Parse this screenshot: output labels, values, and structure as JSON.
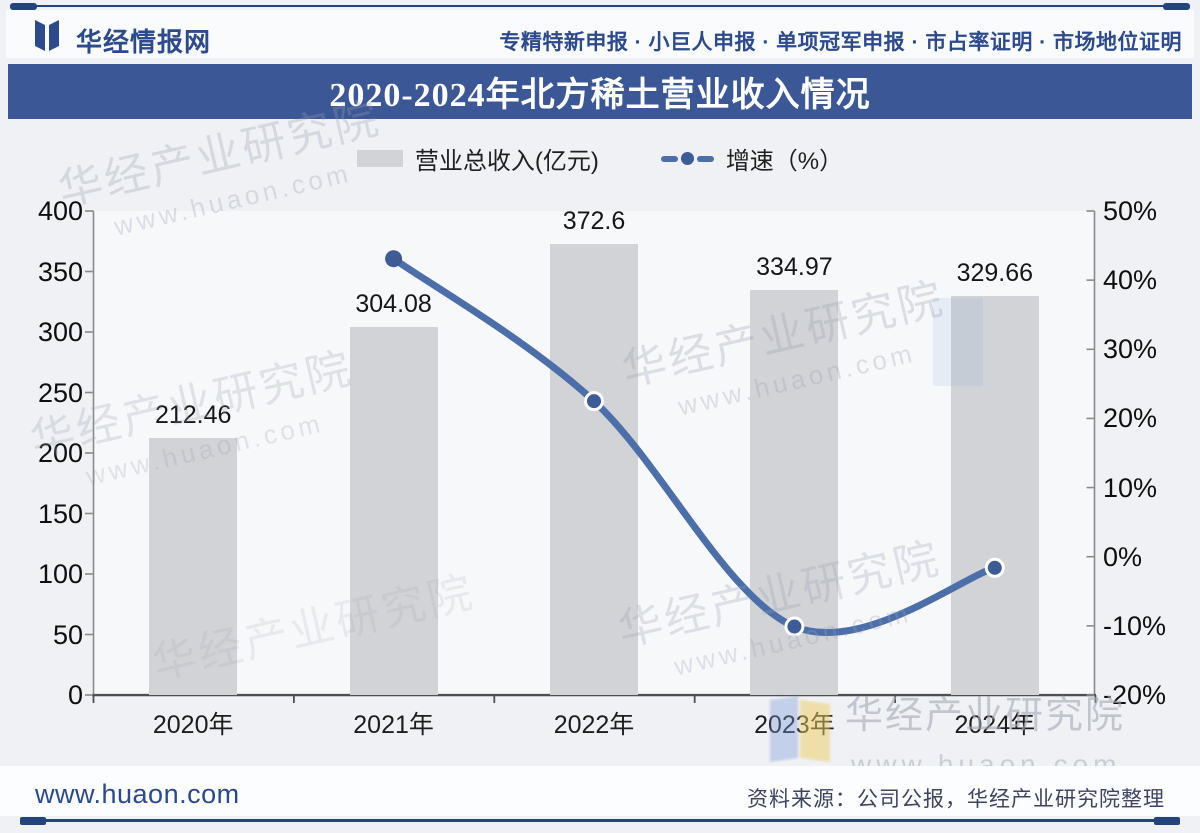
{
  "header": {
    "brand": "华经情报网",
    "services": "专精特新申报 · 小巨人申报 · 单项冠军申报 · 市占率证明 · 市场地位证明"
  },
  "title": "2020-2024年北方稀土营业收入情况",
  "legend": {
    "bar_label": "营业总收入(亿元)",
    "line_label": "增速（%）"
  },
  "chart_data": {
    "type": "bar+line",
    "categories": [
      "2020年",
      "2021年",
      "2022年",
      "2023年",
      "2024年"
    ],
    "series": [
      {
        "name": "营业总收入(亿元)",
        "type": "bar",
        "axis": "left",
        "color": "#d2d3d6",
        "values": [
          212.46,
          304.08,
          372.6,
          334.97,
          329.66
        ],
        "labels": [
          "212.46",
          "304.08",
          "372.6",
          "334.97",
          "329.66"
        ]
      },
      {
        "name": "增速（%）",
        "type": "line",
        "axis": "right",
        "color": "#4d6fa9",
        "marker_color": "#3d5c97",
        "values": [
          null,
          43.1,
          22.5,
          -10.1,
          -1.6
        ]
      }
    ],
    "left_axis": {
      "min": 0,
      "max": 400,
      "step": 50,
      "tick_labels": [
        "400",
        "350",
        "300",
        "250",
        "200",
        "150",
        "100",
        "50",
        "0"
      ]
    },
    "right_axis": {
      "min": -20,
      "max": 50,
      "step": 10,
      "tick_labels": [
        "50%",
        "40%",
        "30%",
        "20%",
        "10%",
        "0%",
        "-10%",
        "-20%"
      ]
    },
    "grid": false,
    "legend_position": "top"
  },
  "watermark": {
    "main": "华经产业研究院",
    "url": "www.huaon.com"
  },
  "footer": {
    "site": "www.huaon.com",
    "source": "资料来源：公司公报，华经产业研究院整理"
  },
  "colors": {
    "accent_navy": "#2c4a8c",
    "title_bar_bg": "#3b5796",
    "bar_fill": "#d2d3d6",
    "line_stroke": "#4d6fa9",
    "marker_fill": "#3d5c97"
  }
}
